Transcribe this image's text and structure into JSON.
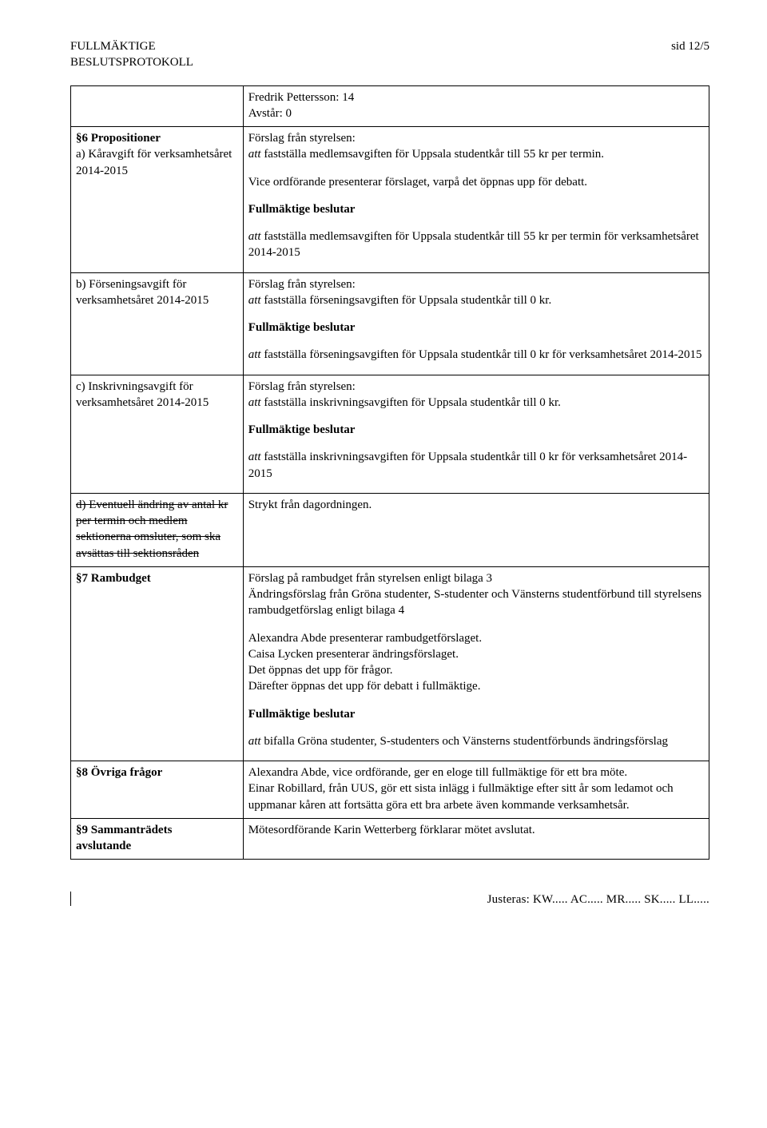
{
  "header": {
    "title1": "FULLMÄKTIGE",
    "title2": "BESLUTSPROTOKOLL",
    "page": "sid 12/5"
  },
  "top_cell": {
    "line1": "Fredrik Pettersson: 14",
    "line2": "Avstår: 0"
  },
  "r1": {
    "left_bold": "§6 Propositioner",
    "left_a": "a) Kåravgift för verksamhetsåret 2014-2015",
    "forslag": "Förslag från styrelsen:",
    "att1_pre": "att",
    "att1_rest": " fastställa medlemsavgiften för Uppsala studentkår till 55 kr per termin.",
    "vice": "Vice ordförande presenterar förslaget, varpå det öppnas upp för debatt.",
    "fb": "Fullmäktige beslutar",
    "att2_pre": "att",
    "att2_rest": " fastställa medlemsavgiften för Uppsala studentkår till 55 kr per termin för verksamhetsåret 2014-2015"
  },
  "r2": {
    "left": "b) Förseningsavgift för verksamhetsåret 2014-2015",
    "forslag": "Förslag från styrelsen:",
    "att1_pre": "att",
    "att1_rest": " fastställa förseningsavgiften för Uppsala studentkår till 0 kr.",
    "fb": "Fullmäktige beslutar",
    "att2_pre": "att",
    "att2_rest": " fastställa förseningsavgiften för Uppsala studentkår till 0 kr för verksamhetsåret 2014-2015"
  },
  "r3": {
    "left": "c) Inskrivningsavgift för verksamhetsåret 2014-2015",
    "forslag": "Förslag från styrelsen:",
    "att1_pre": "att",
    "att1_rest": " fastställa inskrivningsavgiften för Uppsala studentkår till 0 kr.",
    "fb": "Fullmäktige beslutar",
    "att2_pre": "att",
    "att2_rest": " fastställa inskrivningsavgiften för Uppsala studentkår till 0 kr för verksamhetsåret 2014-2015"
  },
  "r4": {
    "left": "d) Eventuell ändring av antal kr per termin och medlem sektionerna omsluter, som ska avsättas till sektionsråden",
    "right": "Strykt från dagordningen."
  },
  "r5": {
    "left": "§7 Rambudget",
    "p1": "Förslag på rambudget från styrelsen enligt bilaga 3",
    "p2": "Ändringsförslag från Gröna studenter, S-studenter och Vänsterns studentförbund till styrelsens rambudgetförslag enligt bilaga 4",
    "p3": "Alexandra Abde presenterar rambudgetförslaget.",
    "p4": "Caisa Lycken presenterar ändringsförslaget.",
    "p5": "Det öppnas det upp för frågor.",
    "p6": "Därefter öppnas det upp för debatt i fullmäktige.",
    "fb": "Fullmäktige beslutar",
    "att_pre": "att",
    "att_rest": " bifalla Gröna studenter, S-studenters och Vänsterns studentförbunds ändringsförslag"
  },
  "r6": {
    "left": "§8 Övriga frågor",
    "p1": "Alexandra Abde, vice ordförande, ger en eloge till fullmäktige för ett bra möte.",
    "p2": "Einar Robillard, från UUS, gör ett sista inlägg i fullmäktige efter sitt år som ledamot och uppmanar kåren att fortsätta göra ett bra arbete även kommande verksamhetsår."
  },
  "r7": {
    "left1": "§9 Sammanträdets",
    "left2": "avslutande",
    "right": "Mötesordförande Karin Wetterberg förklarar mötet avslutat."
  },
  "footer": {
    "text": "Justeras:  KW.....  AC.....  MR.....  SK.....  LL....."
  }
}
